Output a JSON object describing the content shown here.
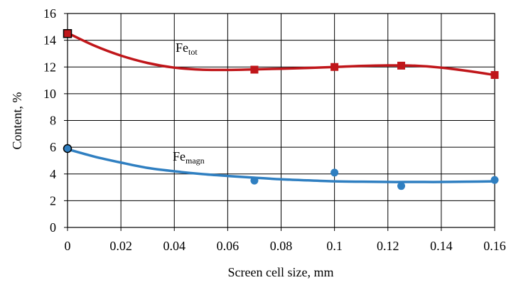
{
  "chart_data": {
    "type": "scatter",
    "title": "",
    "xlabel": "Screen cell size, mm",
    "ylabel": "Content,  %",
    "xlim": [
      0,
      0.16
    ],
    "ylim": [
      0,
      16
    ],
    "x_ticks": [
      "0",
      "0.02",
      "0.04",
      "0.06",
      "0.08",
      "0.1",
      "0.12",
      "0.14",
      "0.16"
    ],
    "y_ticks": [
      "0",
      "2",
      "4",
      "6",
      "8",
      "10",
      "12",
      "14",
      "16"
    ],
    "grid": true,
    "series": [
      {
        "name_main": "Fe",
        "name_sub": "tot",
        "color": "#c0161a",
        "marker": "square",
        "x": [
          0,
          0.07,
          0.1,
          0.125,
          0.16
        ],
        "y": [
          14.5,
          11.8,
          12.0,
          12.1,
          11.4
        ],
        "trend_x": [
          0,
          0.01,
          0.02,
          0.03,
          0.04,
          0.05,
          0.06,
          0.07,
          0.08,
          0.09,
          0.1,
          0.11,
          0.12,
          0.13,
          0.14,
          0.15,
          0.16
        ],
        "trend_y": [
          14.55,
          13.6,
          12.85,
          12.3,
          11.95,
          11.8,
          11.78,
          11.82,
          11.87,
          11.93,
          12.0,
          12.08,
          12.12,
          12.1,
          11.95,
          11.7,
          11.4
        ]
      },
      {
        "name_main": "Fe",
        "name_sub": "magn",
        "color": "#2f7fc1",
        "marker": "circle",
        "x": [
          0,
          0.07,
          0.1,
          0.125,
          0.16
        ],
        "y": [
          5.9,
          3.5,
          4.1,
          3.1,
          3.55
        ],
        "trend_x": [
          0,
          0.01,
          0.02,
          0.03,
          0.04,
          0.05,
          0.06,
          0.07,
          0.08,
          0.09,
          0.1,
          0.11,
          0.12,
          0.13,
          0.14,
          0.15,
          0.16
        ],
        "trend_y": [
          5.85,
          5.3,
          4.85,
          4.45,
          4.2,
          4.0,
          3.85,
          3.72,
          3.6,
          3.52,
          3.45,
          3.42,
          3.4,
          3.4,
          3.4,
          3.42,
          3.45
        ]
      }
    ]
  }
}
